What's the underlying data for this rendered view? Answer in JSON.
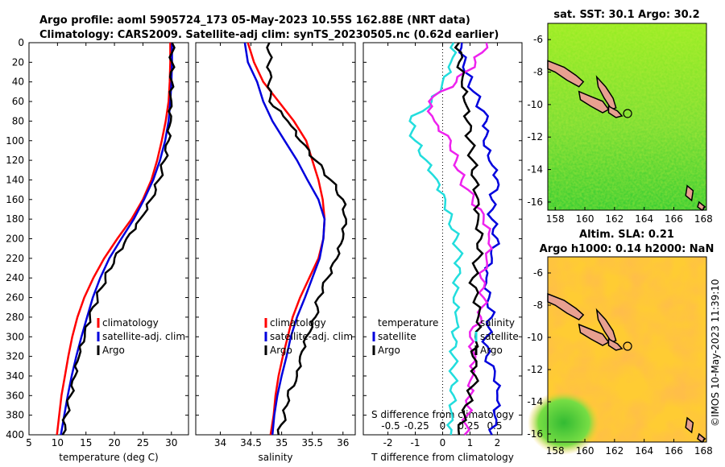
{
  "title_line1": "Argo profile: aoml 5905724_173 05-May-2023 10.55S 162.88E (NRT data)",
  "title_line2": "Climatology: CARS2009. Satellite-adj clim: synTS_20230505.nc (0.62d earlier)",
  "colors": {
    "climatology": "#ff0000",
    "satellite": "#0000dd",
    "argo": "#000000",
    "t_diff": "#22dddd",
    "s_diff": "#ee22ee",
    "s_diff_sat": "#ee22ee"
  },
  "chart_data": [
    {
      "type": "line",
      "id": "temperature",
      "xlabel": "temperature (deg C)",
      "ylabel": "",
      "xlim": [
        5,
        33
      ],
      "ylim": [
        400,
        0
      ],
      "xticks": [
        5,
        10,
        15,
        20,
        25,
        30
      ],
      "yticks": [
        0,
        20,
        40,
        60,
        80,
        100,
        120,
        140,
        160,
        180,
        200,
        220,
        240,
        260,
        280,
        300,
        320,
        340,
        360,
        380,
        400
      ],
      "legend": [
        "climatology",
        "satellite-adj. clim",
        "Argo"
      ],
      "series": [
        {
          "name": "climatology",
          "depth": [
            0,
            20,
            40,
            60,
            80,
            100,
            120,
            140,
            160,
            180,
            200,
            220,
            240,
            260,
            280,
            300,
            320,
            340,
            360,
            380,
            400
          ],
          "values": [
            29.8,
            29.8,
            29.7,
            29.5,
            29.0,
            28.3,
            27.5,
            26.5,
            25.0,
            23.0,
            20.5,
            18.2,
            16.3,
            14.7,
            13.5,
            12.6,
            11.9,
            11.3,
            10.7,
            10.3,
            9.9
          ]
        },
        {
          "name": "satellite-adj. clim",
          "depth": [
            0,
            20,
            40,
            60,
            80,
            100,
            120,
            140,
            160,
            180,
            200,
            220,
            240,
            260,
            280,
            300,
            320,
            340,
            360,
            380,
            400
          ],
          "values": [
            30.1,
            30.1,
            30.0,
            29.8,
            29.5,
            28.9,
            28.0,
            26.8,
            25.2,
            23.4,
            21.2,
            19.1,
            17.5,
            16.2,
            15.2,
            14.2,
            13.3,
            12.5,
            11.8,
            11.2,
            10.6
          ]
        },
        {
          "name": "Argo",
          "depth": [
            0,
            20,
            40,
            60,
            80,
            100,
            120,
            140,
            160,
            180,
            200,
            220,
            240,
            260,
            280,
            300,
            320,
            340,
            360,
            380,
            400
          ],
          "values": [
            30.1,
            30.1,
            30.1,
            30.0,
            29.9,
            29.5,
            28.8,
            27.8,
            26.4,
            24.5,
            22.1,
            20.0,
            18.4,
            17.0,
            15.7,
            14.8,
            13.8,
            13.1,
            12.3,
            11.5,
            10.9
          ]
        }
      ]
    },
    {
      "type": "line",
      "id": "salinity",
      "xlabel": "salinity",
      "xlim": [
        33.6,
        36.2
      ],
      "ylim": [
        400,
        0
      ],
      "xticks": [
        34,
        34.5,
        35,
        35.5,
        36
      ],
      "legend": [
        "climatology",
        "satellite-adj. clim",
        "Argo"
      ],
      "series": [
        {
          "name": "climatology",
          "depth": [
            0,
            20,
            40,
            60,
            80,
            100,
            120,
            140,
            160,
            180,
            200,
            220,
            240,
            260,
            280,
            300,
            320,
            340,
            360,
            380,
            400
          ],
          "values": [
            34.45,
            34.55,
            34.7,
            34.95,
            35.2,
            35.4,
            35.5,
            35.6,
            35.67,
            35.7,
            35.68,
            35.6,
            35.45,
            35.3,
            35.18,
            35.1,
            35.02,
            34.95,
            34.9,
            34.87,
            34.82
          ]
        },
        {
          "name": "satellite-adj. clim",
          "depth": [
            0,
            20,
            40,
            60,
            80,
            100,
            120,
            140,
            160,
            180,
            200,
            220,
            240,
            260,
            280,
            300,
            320,
            340,
            360,
            380,
            400
          ],
          "values": [
            34.4,
            34.45,
            34.6,
            34.7,
            34.85,
            35.05,
            35.25,
            35.42,
            35.6,
            35.7,
            35.68,
            35.62,
            35.5,
            35.38,
            35.25,
            35.15,
            35.08,
            35.0,
            34.93,
            34.88,
            34.85
          ]
        },
        {
          "name": "Argo",
          "depth": [
            0,
            20,
            40,
            60,
            80,
            100,
            120,
            140,
            160,
            180,
            200,
            220,
            240,
            260,
            280,
            300,
            320,
            340,
            360,
            380,
            400
          ],
          "values": [
            34.8,
            34.8,
            34.8,
            34.8,
            35.1,
            35.3,
            35.55,
            35.8,
            36.0,
            36.05,
            36.0,
            35.9,
            35.75,
            35.6,
            35.55,
            35.4,
            35.3,
            35.25,
            35.1,
            35.05,
            34.95
          ]
        }
      ]
    },
    {
      "type": "line",
      "id": "difference",
      "xlabel": "T difference from climatology",
      "xlabel_top": "S difference from climatology",
      "xlim": [
        -2.9,
        2.9
      ],
      "ylim": [
        400,
        0
      ],
      "xticks": [
        -2,
        -1,
        0,
        1,
        2
      ],
      "xticks_top": [
        "-0.5",
        "-0.25",
        "0",
        "0.25",
        "0.5"
      ],
      "legend_left": [
        "temperature",
        "satellite",
        "Argo"
      ],
      "legend_right": [
        "salinity",
        "satellite",
        "Argo"
      ],
      "series": [
        {
          "name": "T diff satellite",
          "depth": [
            0,
            20,
            40,
            60,
            80,
            100,
            120,
            140,
            160,
            180,
            200,
            220,
            240,
            260,
            280,
            300,
            320,
            340,
            360,
            380,
            400
          ],
          "values": [
            0.4,
            0.3,
            0.0,
            -0.4,
            -1.2,
            -1.0,
            -0.6,
            -0.2,
            0.1,
            0.3,
            0.5,
            0.6,
            0.5,
            0.4,
            0.5,
            0.4,
            0.4,
            0.4,
            0.4,
            0.35,
            0.3
          ]
        },
        {
          "name": "T diff Argo",
          "depth": [
            0,
            20,
            40,
            60,
            80,
            100,
            120,
            140,
            160,
            180,
            200,
            220,
            240,
            260,
            280,
            300,
            320,
            340,
            360,
            380,
            400
          ],
          "values": [
            0.7,
            0.8,
            1.0,
            1.3,
            1.6,
            1.5,
            1.7,
            2.0,
            1.8,
            1.8,
            2.0,
            1.8,
            1.6,
            1.7,
            1.8,
            1.6,
            1.6,
            1.9,
            2.0,
            1.9,
            1.8
          ]
        },
        {
          "name": "S diff satellite",
          "depth": [
            0,
            20,
            40,
            60,
            80,
            100,
            120,
            140,
            160,
            180,
            200,
            220,
            240,
            260,
            280,
            300,
            320,
            340,
            360,
            380,
            400
          ],
          "values": [
            1.6,
            1.2,
            0.5,
            -0.5,
            -0.3,
            0.3,
            0.5,
            0.7,
            1.1,
            1.5,
            1.7,
            1.6,
            1.4,
            1.5,
            1.4,
            1.0,
            1.2,
            1.1,
            1.0,
            0.9,
            0.8
          ]
        },
        {
          "name": "S diff Argo",
          "depth": [
            0,
            20,
            40,
            60,
            80,
            100,
            120,
            140,
            160,
            180,
            200,
            220,
            240,
            260,
            280,
            300,
            320,
            340,
            360,
            380,
            400
          ],
          "values": [
            0.6,
            0.6,
            0.7,
            0.8,
            0.9,
            1.0,
            1.1,
            1.2,
            1.3,
            1.3,
            1.4,
            1.3,
            1.1,
            1.2,
            1.3,
            1.2,
            1.1,
            1.2,
            1.0,
            0.8,
            0.6
          ]
        }
      ]
    },
    {
      "type": "heatmap",
      "id": "sst_map",
      "title": "sat. SST: 30.1 Argo: 30.2",
      "xlim": [
        157.5,
        168.2
      ],
      "ylim": [
        -16.5,
        -5
      ],
      "xticks": [
        158,
        160,
        162,
        164,
        166,
        168
      ],
      "yticks": [
        -6,
        -8,
        -10,
        -12,
        -14,
        -16
      ],
      "marker": {
        "lon": 162.88,
        "lat": -10.55
      }
    },
    {
      "type": "heatmap",
      "id": "sla_map",
      "title_line1": "Altim. SLA: 0.21",
      "title_line2": "Argo h1000: 0.14 h2000: NaN",
      "xlim": [
        157.5,
        168.2
      ],
      "ylim": [
        -16.5,
        -5
      ],
      "xticks": [
        158,
        160,
        162,
        164,
        166,
        168
      ],
      "yticks": [
        -6,
        -8,
        -10,
        -12,
        -14,
        -16
      ],
      "marker": {
        "lon": 162.88,
        "lat": -10.55
      }
    }
  ],
  "watermark": "©IMOS 10-May-2023 11:39:10"
}
